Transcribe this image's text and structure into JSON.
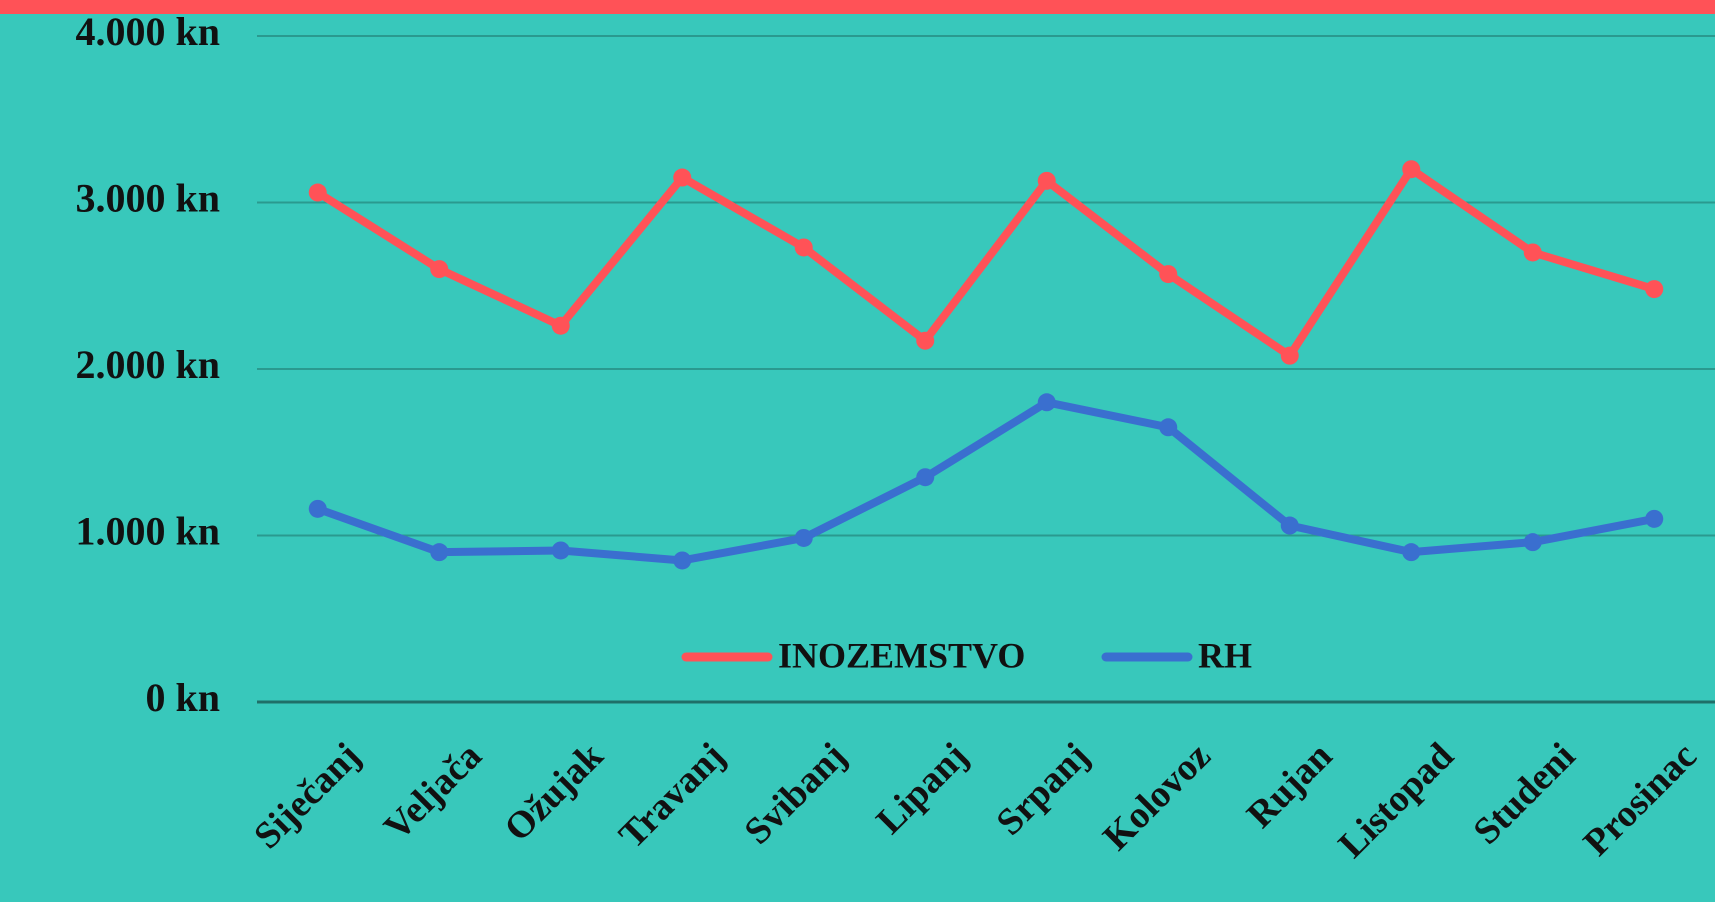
{
  "chart_data": {
    "type": "line",
    "categories": [
      "Siječanj",
      "Veljača",
      "Ožujak",
      "Travanj",
      "Svibanj",
      "Lipanj",
      "Srpanj",
      "Kolovoz",
      "Rujan",
      "Listopad",
      "Studeni",
      "Prosinac"
    ],
    "series": [
      {
        "name": "INOZEMSTVO",
        "color": "#ff5257",
        "values": [
          3060,
          2600,
          2260,
          3150,
          2730,
          2170,
          3130,
          2570,
          2080,
          3200,
          2700,
          2480
        ]
      },
      {
        "name": "RH",
        "color": "#3a6fcf",
        "values": [
          1160,
          900,
          910,
          850,
          985,
          1350,
          1800,
          1650,
          1060,
          900,
          960,
          1100
        ]
      }
    ],
    "ylim": [
      0,
      4000
    ],
    "yticks": [
      {
        "value": 0,
        "label": "0 kn"
      },
      {
        "value": 1000,
        "label": "1.000 kn"
      },
      {
        "value": 2000,
        "label": "2.000 kn"
      },
      {
        "value": 3000,
        "label": "3.000 kn"
      },
      {
        "value": 4000,
        "label": "4.000 kn"
      }
    ],
    "grid": true,
    "legend": "lower center"
  }
}
